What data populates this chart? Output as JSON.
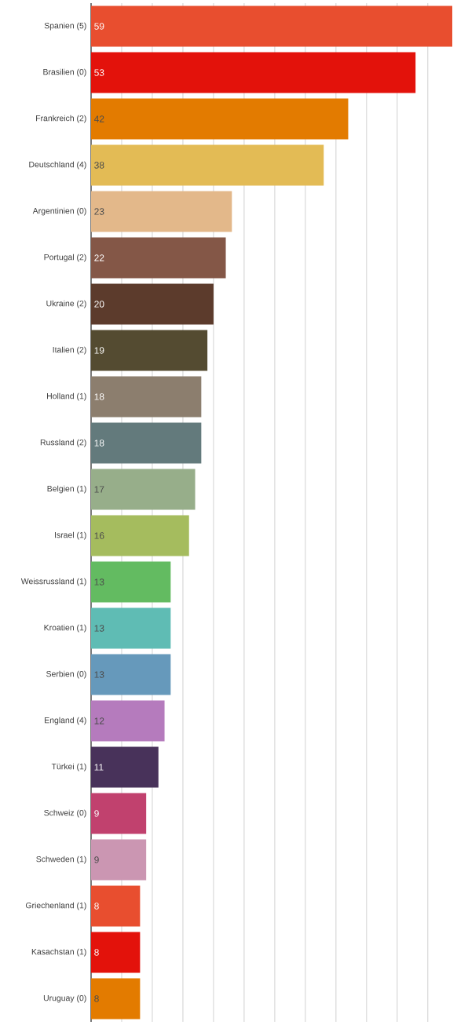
{
  "chart_data": {
    "type": "bar",
    "orientation": "horizontal",
    "categories": [
      "Spanien (5)",
      "Brasilien (0)",
      "Frankreich (2)",
      "Deutschland (4)",
      "Argentinien (0)",
      "Portugal (2)",
      "Ukraine (2)",
      "Italien (2)",
      "Holland (1)",
      "Russland (2)",
      "Belgien (1)",
      "Israel (1)",
      "Weissrussland (1)",
      "Kroatien (1)",
      "Serbien (0)",
      "England (4)",
      "Türkei (1)",
      "Schweiz (0)",
      "Schweden (1)",
      "Griechenland (1)",
      "Kasachstan (1)",
      "Uruguay (0)"
    ],
    "values": [
      59,
      53,
      42,
      38,
      23,
      22,
      20,
      19,
      18,
      18,
      17,
      16,
      13,
      13,
      13,
      12,
      11,
      9,
      9,
      8,
      8,
      8
    ],
    "colors": [
      "#e84e2f",
      "#e3120b",
      "#e37b00",
      "#e3bb55",
      "#e3b88a",
      "#845747",
      "#5c3b2c",
      "#544b31",
      "#8c7e6e",
      "#637a7c",
      "#97ae8a",
      "#a5bc5e",
      "#63bb61",
      "#5fbcb4",
      "#6699bb",
      "#b57bbd",
      "#48325a",
      "#c1416e",
      "#cb96b2",
      "#e84e2f",
      "#e3120b",
      "#e37b00"
    ],
    "xlim": [
      0,
      59
    ],
    "xticks": [
      {
        "value": 5,
        "label": null
      },
      {
        "value": 10,
        "label": null
      },
      {
        "value": 15,
        "label": null
      },
      {
        "value": 20,
        "label": null
      },
      {
        "value": 25,
        "label": null
      },
      {
        "value": 30,
        "label": null
      },
      {
        "value": 35,
        "label": null
      },
      {
        "value": 40,
        "label": null
      },
      {
        "value": 45,
        "label": null
      },
      {
        "value": 50,
        "label": null
      },
      {
        "value": 55,
        "label": null
      }
    ],
    "grid": "x",
    "tick_labels": "y",
    "data_labels": true
  }
}
